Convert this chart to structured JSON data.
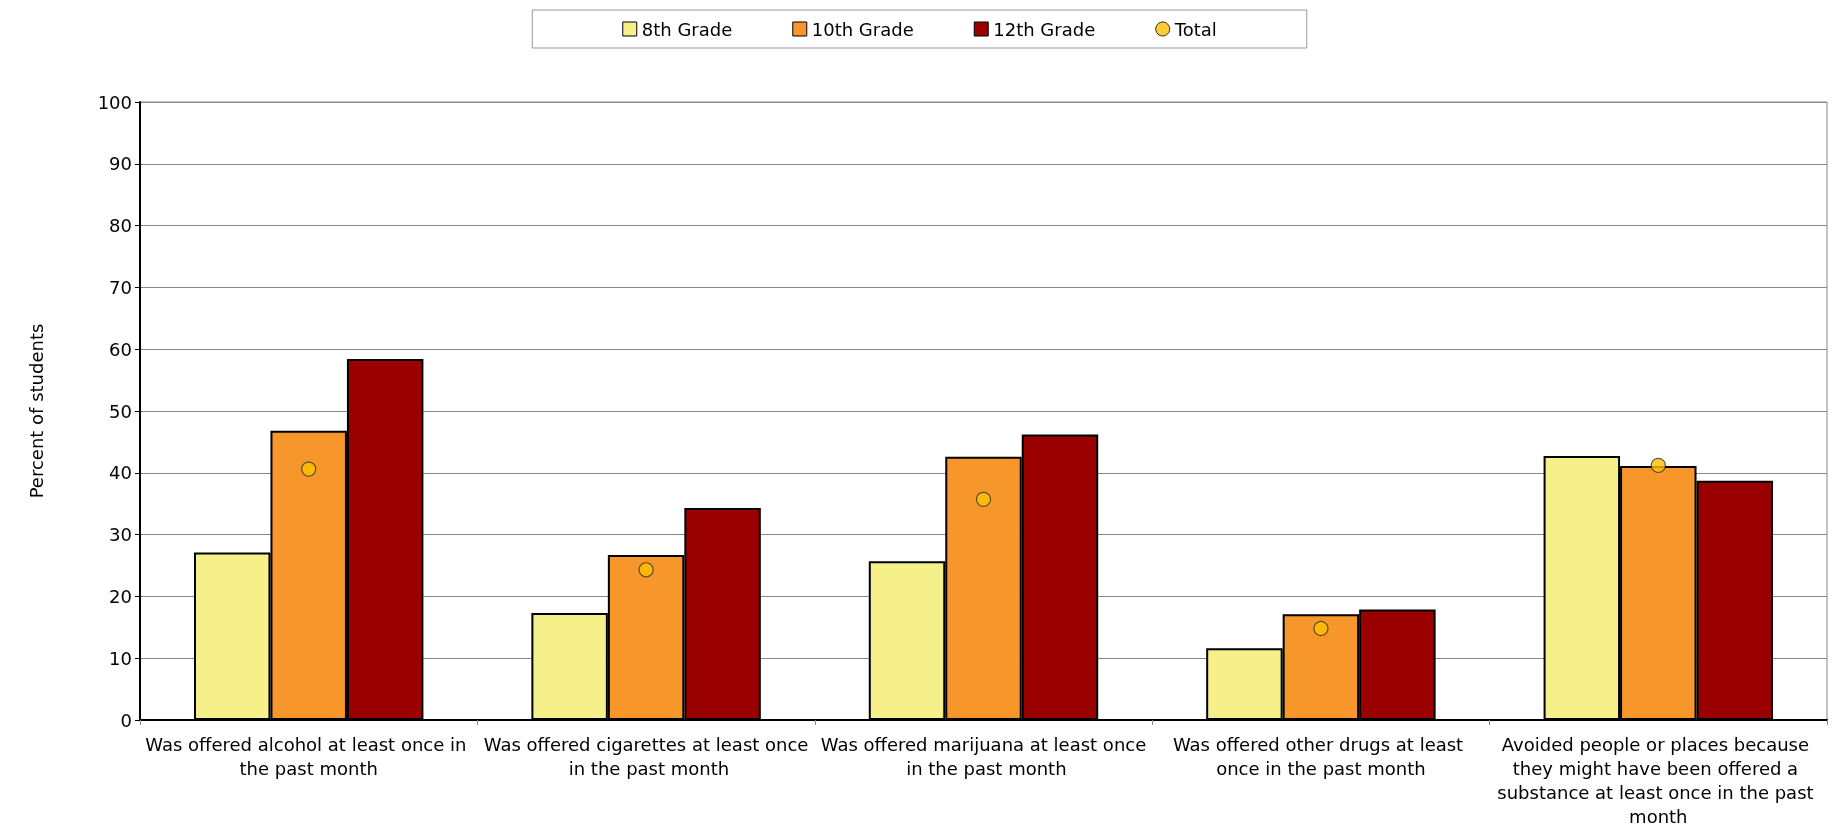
{
  "chart_data": {
    "type": "bar",
    "ylabel": "Percent of students",
    "categories": [
      "Was offered alcohol at least once in the past month",
      "Was offered cigarettes at least once in the past month",
      "Was offered marijuana at least once in the past month",
      "Was offered other drugs at least once in the past month",
      "Avoided people or places because they might have been offered a substance at least once in the past month"
    ],
    "series": [
      {
        "name": "8th Grade",
        "color": "#f5f08a",
        "values": [
          27.1,
          17.3,
          25.7,
          11.6,
          42.7
        ]
      },
      {
        "name": "10th Grade",
        "color": "#f7962a",
        "values": [
          46.8,
          26.7,
          42.6,
          17.1,
          41.1
        ]
      },
      {
        "name": "12th Grade",
        "color": "#9a0000",
        "values": [
          58.4,
          34.3,
          46.2,
          17.9,
          38.7
        ]
      },
      {
        "name": "Total",
        "type": "scatter",
        "color": "#ffc000",
        "x": [
          "Was offered alcohol at least once in the past month",
          "Was offered cigarettes at least once in the past month",
          "Was offered marijuana at least once in the past month",
          "Was offered other drugs at least once in the past month",
          "Avoided people or places because they might have been offered a substance at least once in the past month"
        ],
        "values": [
          40.6,
          24.3,
          35.7,
          14.8,
          41.2
        ]
      }
    ],
    "ylim": [
      0,
      100
    ],
    "yticks": [
      0,
      10,
      20,
      30,
      40,
      50,
      60,
      70,
      80,
      90,
      100
    ],
    "grid": "y",
    "legend": "top",
    "marker": "circle"
  }
}
